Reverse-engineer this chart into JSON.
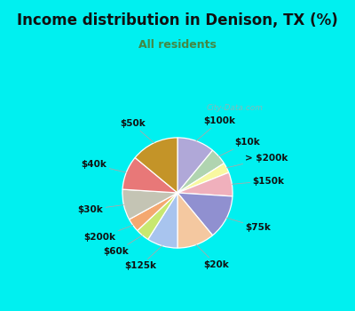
{
  "title": "Income distribution in Denison, TX (%)",
  "subtitle": "All residents",
  "title_color": "#111111",
  "subtitle_color": "#448844",
  "bg_cyan": "#00f0f0",
  "bg_chart": "#e0f0e8",
  "watermark": "City-Data.com",
  "labels": [
    "$100k",
    "$10k",
    "> $200k",
    "$150k",
    "$75k",
    "$20k",
    "$125k",
    "$60k",
    "$200k",
    "$30k",
    "$40k",
    "$50k"
  ],
  "values": [
    11,
    5,
    3,
    7,
    13,
    11,
    9,
    4,
    4,
    9,
    10,
    14
  ],
  "colors": [
    "#b0a8d8",
    "#b0d4b0",
    "#f8f8a0",
    "#f0b0bc",
    "#9090d0",
    "#f4c8a0",
    "#a8c4ee",
    "#c8e870",
    "#f4a870",
    "#c4c4b4",
    "#e87878",
    "#c49428"
  ],
  "label_fontsize": 7.5,
  "title_fontsize": 12,
  "subtitle_fontsize": 9,
  "label_color": "#111111"
}
